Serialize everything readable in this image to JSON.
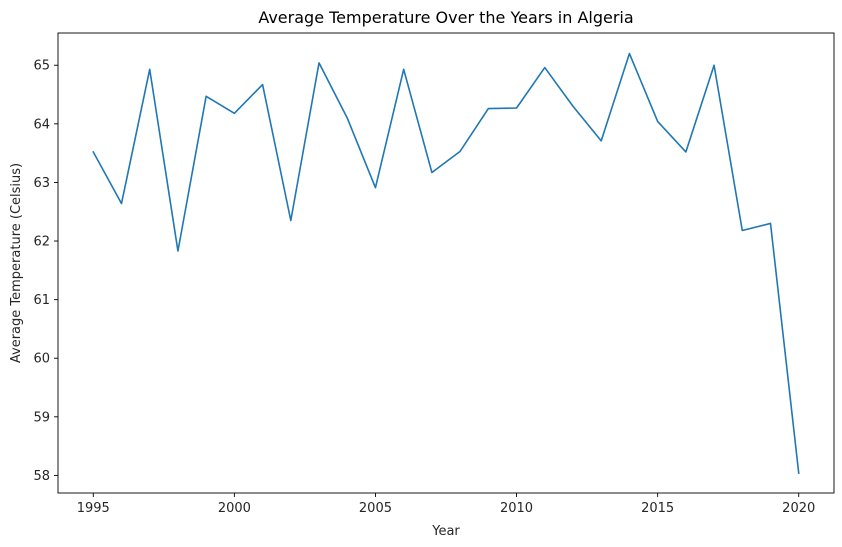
{
  "chart_data": {
    "type": "line",
    "title": "Average Temperature Over the Years in Algeria",
    "xlabel": "Year",
    "ylabel": "Average Temperature (Celsius)",
    "xlim": [
      1993.75,
      2021.25
    ],
    "ylim": [
      57.7,
      65.55
    ],
    "xticks": [
      1995,
      2000,
      2005,
      2010,
      2015,
      2020
    ],
    "yticks": [
      58,
      59,
      60,
      61,
      62,
      63,
      64,
      65
    ],
    "grid": false,
    "line_color": "#1f77b4",
    "series": [
      {
        "x": [
          1995,
          1996,
          1997,
          1998,
          1999,
          2000,
          2001,
          2002,
          2003,
          2004,
          2005,
          2006,
          2007,
          2008,
          2009,
          2010,
          2011,
          2012,
          2013,
          2014,
          2015,
          2016,
          2017,
          2018,
          2019,
          2020
        ],
        "values": [
          63.52,
          62.64,
          64.93,
          61.83,
          64.47,
          64.18,
          64.67,
          62.35,
          65.04,
          64.1,
          62.91,
          64.93,
          63.17,
          63.53,
          64.26,
          64.27,
          64.96,
          64.3,
          63.71,
          65.2,
          64.04,
          63.52,
          65.0,
          62.18,
          62.3,
          58.04
        ]
      }
    ]
  }
}
